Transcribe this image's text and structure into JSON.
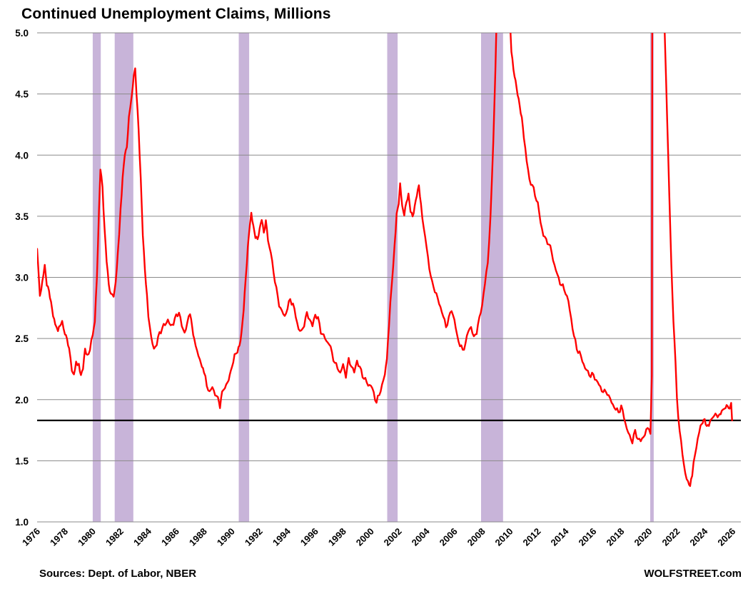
{
  "title": "Continued Unemployment Claims, Millions",
  "footer": {
    "sources": "Sources: Dept. of Labor, NBER",
    "watermark": "WOLFSTREET.com"
  },
  "chart_data": {
    "type": "line",
    "title": "Continued Unemployment Claims, Millions",
    "xlabel": "",
    "ylabel": "Continued unemployment claims, millions",
    "xlim": [
      1976,
      2026.6
    ],
    "ylim": [
      1.0,
      5.0
    ],
    "y_ticks": [
      1.0,
      1.5,
      2.0,
      2.5,
      3.0,
      3.5,
      4.0,
      4.5,
      5.0
    ],
    "x_ticks": [
      1976,
      1978,
      1980,
      1982,
      1984,
      1986,
      1988,
      1990,
      1992,
      1994,
      1996,
      1998,
      2000,
      2002,
      2004,
      2006,
      2008,
      2010,
      2012,
      2014,
      2016,
      2018,
      2020,
      2022,
      2024,
      2026
    ],
    "grid": "horizontal",
    "legend": "none",
    "line_color": "#FF0000",
    "band_color": "#C8B4D9",
    "grid_color": "#8a8a8a",
    "reference_line": {
      "value": 1.83,
      "color": "#000000"
    },
    "recession_bands": [
      [
        1980.0,
        1980.58
      ],
      [
        1981.58,
        1982.92
      ],
      [
        1990.5,
        1991.25
      ],
      [
        2001.17,
        2001.92
      ],
      [
        2007.92,
        2009.5
      ],
      [
        2020.08,
        2020.33
      ]
    ],
    "series": [
      {
        "name": "Continued unemployment claims (millions)",
        "points": [
          [
            1976.0,
            3.22
          ],
          [
            1976.1,
            3.05
          ],
          [
            1976.2,
            2.85
          ],
          [
            1976.3,
            2.9
          ],
          [
            1976.45,
            3.0
          ],
          [
            1976.55,
            3.1
          ],
          [
            1976.7,
            2.95
          ],
          [
            1976.85,
            2.9
          ],
          [
            1977.0,
            2.8
          ],
          [
            1977.15,
            2.7
          ],
          [
            1977.3,
            2.62
          ],
          [
            1977.5,
            2.55
          ],
          [
            1977.65,
            2.6
          ],
          [
            1977.8,
            2.62
          ],
          [
            1978.0,
            2.55
          ],
          [
            1978.15,
            2.5
          ],
          [
            1978.3,
            2.42
          ],
          [
            1978.5,
            2.25
          ],
          [
            1978.65,
            2.2
          ],
          [
            1978.8,
            2.32
          ],
          [
            1979.0,
            2.28
          ],
          [
            1979.15,
            2.18
          ],
          [
            1979.3,
            2.25
          ],
          [
            1979.45,
            2.4
          ],
          [
            1979.6,
            2.35
          ],
          [
            1979.8,
            2.42
          ],
          [
            1980.0,
            2.52
          ],
          [
            1980.15,
            2.65
          ],
          [
            1980.3,
            3.0
          ],
          [
            1980.45,
            3.55
          ],
          [
            1980.55,
            3.9
          ],
          [
            1980.7,
            3.75
          ],
          [
            1980.85,
            3.4
          ],
          [
            1981.0,
            3.15
          ],
          [
            1981.15,
            2.95
          ],
          [
            1981.3,
            2.87
          ],
          [
            1981.5,
            2.85
          ],
          [
            1981.65,
            2.95
          ],
          [
            1981.8,
            3.2
          ],
          [
            1982.0,
            3.55
          ],
          [
            1982.15,
            3.8
          ],
          [
            1982.3,
            4.0
          ],
          [
            1982.45,
            4.05
          ],
          [
            1982.6,
            4.3
          ],
          [
            1982.8,
            4.5
          ],
          [
            1982.95,
            4.65
          ],
          [
            1983.05,
            4.7
          ],
          [
            1983.15,
            4.5
          ],
          [
            1983.3,
            4.2
          ],
          [
            1983.45,
            3.8
          ],
          [
            1983.6,
            3.35
          ],
          [
            1983.75,
            3.05
          ],
          [
            1983.9,
            2.85
          ],
          [
            1984.0,
            2.7
          ],
          [
            1984.2,
            2.5
          ],
          [
            1984.4,
            2.42
          ],
          [
            1984.6,
            2.45
          ],
          [
            1984.8,
            2.55
          ],
          [
            1985.0,
            2.58
          ],
          [
            1985.2,
            2.62
          ],
          [
            1985.4,
            2.65
          ],
          [
            1985.6,
            2.6
          ],
          [
            1985.8,
            2.63
          ],
          [
            1986.0,
            2.68
          ],
          [
            1986.2,
            2.72
          ],
          [
            1986.4,
            2.6
          ],
          [
            1986.6,
            2.55
          ],
          [
            1986.8,
            2.62
          ],
          [
            1987.0,
            2.72
          ],
          [
            1987.15,
            2.6
          ],
          [
            1987.3,
            2.5
          ],
          [
            1987.5,
            2.4
          ],
          [
            1987.7,
            2.32
          ],
          [
            1987.85,
            2.28
          ],
          [
            1988.0,
            2.22
          ],
          [
            1988.2,
            2.12
          ],
          [
            1988.4,
            2.06
          ],
          [
            1988.6,
            2.1
          ],
          [
            1988.8,
            2.05
          ],
          [
            1989.0,
            2.0
          ],
          [
            1989.15,
            1.93
          ],
          [
            1989.3,
            2.05
          ],
          [
            1989.5,
            2.1
          ],
          [
            1989.7,
            2.15
          ],
          [
            1989.85,
            2.2
          ],
          [
            1990.0,
            2.28
          ],
          [
            1990.2,
            2.35
          ],
          [
            1990.4,
            2.4
          ],
          [
            1990.55,
            2.45
          ],
          [
            1990.7,
            2.55
          ],
          [
            1990.85,
            2.75
          ],
          [
            1991.0,
            3.0
          ],
          [
            1991.15,
            3.25
          ],
          [
            1991.3,
            3.45
          ],
          [
            1991.4,
            3.52
          ],
          [
            1991.55,
            3.4
          ],
          [
            1991.7,
            3.32
          ],
          [
            1991.85,
            3.3
          ],
          [
            1992.0,
            3.38
          ],
          [
            1992.15,
            3.47
          ],
          [
            1992.3,
            3.35
          ],
          [
            1992.45,
            3.45
          ],
          [
            1992.6,
            3.3
          ],
          [
            1992.8,
            3.2
          ],
          [
            1993.0,
            3.05
          ],
          [
            1993.2,
            2.9
          ],
          [
            1993.4,
            2.78
          ],
          [
            1993.6,
            2.72
          ],
          [
            1993.8,
            2.68
          ],
          [
            1994.0,
            2.75
          ],
          [
            1994.2,
            2.82
          ],
          [
            1994.4,
            2.78
          ],
          [
            1994.6,
            2.68
          ],
          [
            1994.8,
            2.58
          ],
          [
            1995.0,
            2.55
          ],
          [
            1995.2,
            2.62
          ],
          [
            1995.4,
            2.7
          ],
          [
            1995.6,
            2.66
          ],
          [
            1995.8,
            2.6
          ],
          [
            1996.0,
            2.7
          ],
          [
            1996.2,
            2.66
          ],
          [
            1996.4,
            2.56
          ],
          [
            1996.6,
            2.52
          ],
          [
            1996.8,
            2.48
          ],
          [
            1997.0,
            2.46
          ],
          [
            1997.2,
            2.38
          ],
          [
            1997.4,
            2.3
          ],
          [
            1997.6,
            2.26
          ],
          [
            1997.8,
            2.22
          ],
          [
            1998.0,
            2.28
          ],
          [
            1998.2,
            2.2
          ],
          [
            1998.4,
            2.32
          ],
          [
            1998.6,
            2.28
          ],
          [
            1998.8,
            2.22
          ],
          [
            1999.0,
            2.32
          ],
          [
            1999.2,
            2.26
          ],
          [
            1999.4,
            2.2
          ],
          [
            1999.6,
            2.16
          ],
          [
            1999.8,
            2.12
          ],
          [
            2000.0,
            2.12
          ],
          [
            2000.2,
            2.05
          ],
          [
            2000.4,
            1.98
          ],
          [
            2000.6,
            2.04
          ],
          [
            2000.8,
            2.12
          ],
          [
            2001.0,
            2.2
          ],
          [
            2001.15,
            2.35
          ],
          [
            2001.3,
            2.6
          ],
          [
            2001.5,
            2.95
          ],
          [
            2001.7,
            3.25
          ],
          [
            2001.85,
            3.5
          ],
          [
            2002.0,
            3.6
          ],
          [
            2002.1,
            3.78
          ],
          [
            2002.25,
            3.58
          ],
          [
            2002.4,
            3.52
          ],
          [
            2002.55,
            3.62
          ],
          [
            2002.7,
            3.68
          ],
          [
            2002.85,
            3.55
          ],
          [
            2003.0,
            3.5
          ],
          [
            2003.15,
            3.58
          ],
          [
            2003.3,
            3.68
          ],
          [
            2003.45,
            3.75
          ],
          [
            2003.6,
            3.6
          ],
          [
            2003.8,
            3.4
          ],
          [
            2004.0,
            3.25
          ],
          [
            2004.2,
            3.08
          ],
          [
            2004.4,
            2.95
          ],
          [
            2004.6,
            2.9
          ],
          [
            2004.8,
            2.82
          ],
          [
            2005.0,
            2.76
          ],
          [
            2005.2,
            2.68
          ],
          [
            2005.4,
            2.6
          ],
          [
            2005.6,
            2.66
          ],
          [
            2005.8,
            2.74
          ],
          [
            2006.0,
            2.65
          ],
          [
            2006.2,
            2.52
          ],
          [
            2006.4,
            2.45
          ],
          [
            2006.6,
            2.4
          ],
          [
            2006.8,
            2.46
          ],
          [
            2007.0,
            2.56
          ],
          [
            2007.2,
            2.6
          ],
          [
            2007.4,
            2.5
          ],
          [
            2007.6,
            2.56
          ],
          [
            2007.8,
            2.66
          ],
          [
            2008.0,
            2.78
          ],
          [
            2008.2,
            2.95
          ],
          [
            2008.4,
            3.12
          ],
          [
            2008.6,
            3.5
          ],
          [
            2008.8,
            4.1
          ],
          [
            2008.95,
            4.7
          ],
          [
            2009.1,
            5.4
          ],
          [
            2009.3,
            6.2
          ],
          [
            2009.45,
            6.6
          ],
          [
            2009.6,
            6.3
          ],
          [
            2009.8,
            5.7
          ],
          [
            2010.0,
            5.1
          ],
          [
            2010.1,
            4.85
          ],
          [
            2010.25,
            4.7
          ],
          [
            2010.4,
            4.6
          ],
          [
            2010.55,
            4.5
          ],
          [
            2010.7,
            4.4
          ],
          [
            2010.85,
            4.3
          ],
          [
            2011.0,
            4.15
          ],
          [
            2011.2,
            3.95
          ],
          [
            2011.4,
            3.8
          ],
          [
            2011.6,
            3.75
          ],
          [
            2011.8,
            3.68
          ],
          [
            2012.0,
            3.6
          ],
          [
            2012.2,
            3.45
          ],
          [
            2012.4,
            3.35
          ],
          [
            2012.6,
            3.3
          ],
          [
            2012.8,
            3.28
          ],
          [
            2013.0,
            3.2
          ],
          [
            2013.2,
            3.1
          ],
          [
            2013.4,
            3.02
          ],
          [
            2013.6,
            2.96
          ],
          [
            2013.8,
            2.92
          ],
          [
            2014.0,
            2.88
          ],
          [
            2014.2,
            2.8
          ],
          [
            2014.4,
            2.66
          ],
          [
            2014.6,
            2.52
          ],
          [
            2014.8,
            2.42
          ],
          [
            2015.0,
            2.38
          ],
          [
            2015.2,
            2.32
          ],
          [
            2015.4,
            2.26
          ],
          [
            2015.6,
            2.22
          ],
          [
            2015.8,
            2.2
          ],
          [
            2016.0,
            2.2
          ],
          [
            2016.2,
            2.16
          ],
          [
            2016.4,
            2.12
          ],
          [
            2016.6,
            2.08
          ],
          [
            2016.8,
            2.06
          ],
          [
            2017.0,
            2.06
          ],
          [
            2017.2,
            2.0
          ],
          [
            2017.4,
            1.96
          ],
          [
            2017.6,
            1.92
          ],
          [
            2017.8,
            1.9
          ],
          [
            2018.0,
            1.94
          ],
          [
            2018.2,
            1.86
          ],
          [
            2018.4,
            1.76
          ],
          [
            2018.6,
            1.7
          ],
          [
            2018.8,
            1.66
          ],
          [
            2019.0,
            1.74
          ],
          [
            2019.2,
            1.68
          ],
          [
            2019.4,
            1.66
          ],
          [
            2019.6,
            1.7
          ],
          [
            2019.8,
            1.74
          ],
          [
            2020.0,
            1.78
          ],
          [
            2020.1,
            1.72
          ],
          [
            2020.2,
            2.2
          ],
          [
            2020.3,
            12.0
          ],
          [
            2020.4,
            24.9
          ],
          [
            2020.55,
            17.0
          ],
          [
            2020.7,
            9.0
          ],
          [
            2020.85,
            6.2
          ],
          [
            2021.0,
            5.5
          ],
          [
            2021.15,
            4.9
          ],
          [
            2021.3,
            4.3
          ],
          [
            2021.45,
            3.7
          ],
          [
            2021.6,
            3.1
          ],
          [
            2021.75,
            2.65
          ],
          [
            2021.9,
            2.3
          ],
          [
            2022.0,
            2.0
          ],
          [
            2022.2,
            1.75
          ],
          [
            2022.4,
            1.55
          ],
          [
            2022.6,
            1.4
          ],
          [
            2022.8,
            1.32
          ],
          [
            2022.95,
            1.3
          ],
          [
            2023.1,
            1.38
          ],
          [
            2023.3,
            1.55
          ],
          [
            2023.5,
            1.68
          ],
          [
            2023.7,
            1.78
          ],
          [
            2023.85,
            1.82
          ],
          [
            2024.0,
            1.84
          ],
          [
            2024.15,
            1.78
          ],
          [
            2024.3,
            1.8
          ],
          [
            2024.5,
            1.84
          ],
          [
            2024.7,
            1.87
          ],
          [
            2024.85,
            1.86
          ],
          [
            2025.0,
            1.85
          ],
          [
            2025.15,
            1.88
          ],
          [
            2025.3,
            1.9
          ],
          [
            2025.5,
            1.94
          ],
          [
            2025.65,
            1.96
          ],
          [
            2025.8,
            1.92
          ],
          [
            2025.9,
            1.96
          ],
          [
            2025.97,
            1.83
          ]
        ]
      }
    ]
  }
}
